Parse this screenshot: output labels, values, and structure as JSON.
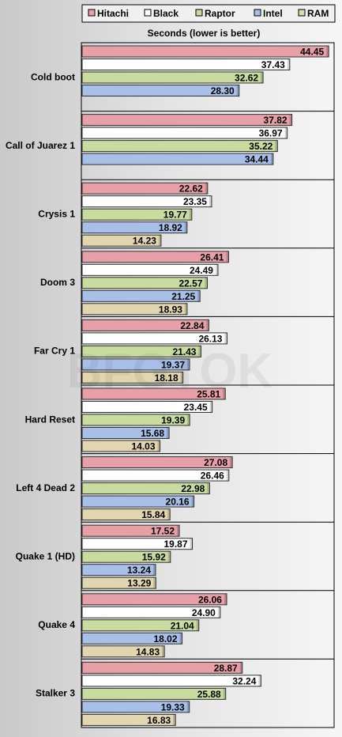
{
  "chart_data": {
    "type": "bar",
    "orientation": "horizontal",
    "title": "Seconds (lower is better)",
    "watermark": "BFGTOK",
    "grid": true,
    "legend_position": "top",
    "categories": [
      "Cold boot",
      "Call of Juarez 1",
      "Crysis 1",
      "Doom 3",
      "Far Cry 1",
      "Hard Reset",
      "Left 4 Dead 2",
      "Quake 1 (HD)",
      "Quake 4",
      "Stalker 3"
    ],
    "xlim": [
      0,
      45
    ],
    "series": [
      {
        "name": "Hitachi",
        "color": "#e8a0a8",
        "values": [
          44.45,
          37.82,
          22.62,
          26.41,
          22.84,
          25.81,
          27.08,
          17.52,
          26.06,
          28.87
        ]
      },
      {
        "name": "Black",
        "color": "#ffffff",
        "values": [
          37.43,
          36.97,
          23.35,
          24.49,
          26.13,
          23.45,
          26.46,
          19.87,
          24.9,
          32.24
        ]
      },
      {
        "name": "Raptor",
        "color": "#c8dca0",
        "values": [
          32.62,
          35.22,
          19.77,
          22.57,
          21.43,
          19.39,
          22.98,
          15.92,
          21.04,
          25.88
        ]
      },
      {
        "name": "Intel",
        "color": "#a8c0e8",
        "values": [
          28.3,
          34.44,
          18.92,
          21.25,
          19.37,
          15.68,
          20.16,
          13.24,
          18.02,
          19.33
        ]
      },
      {
        "name": "RAM",
        "color": "#e2d6b0",
        "values": [
          null,
          null,
          14.23,
          18.93,
          18.18,
          14.03,
          15.84,
          13.29,
          14.83,
          16.83
        ]
      }
    ]
  }
}
